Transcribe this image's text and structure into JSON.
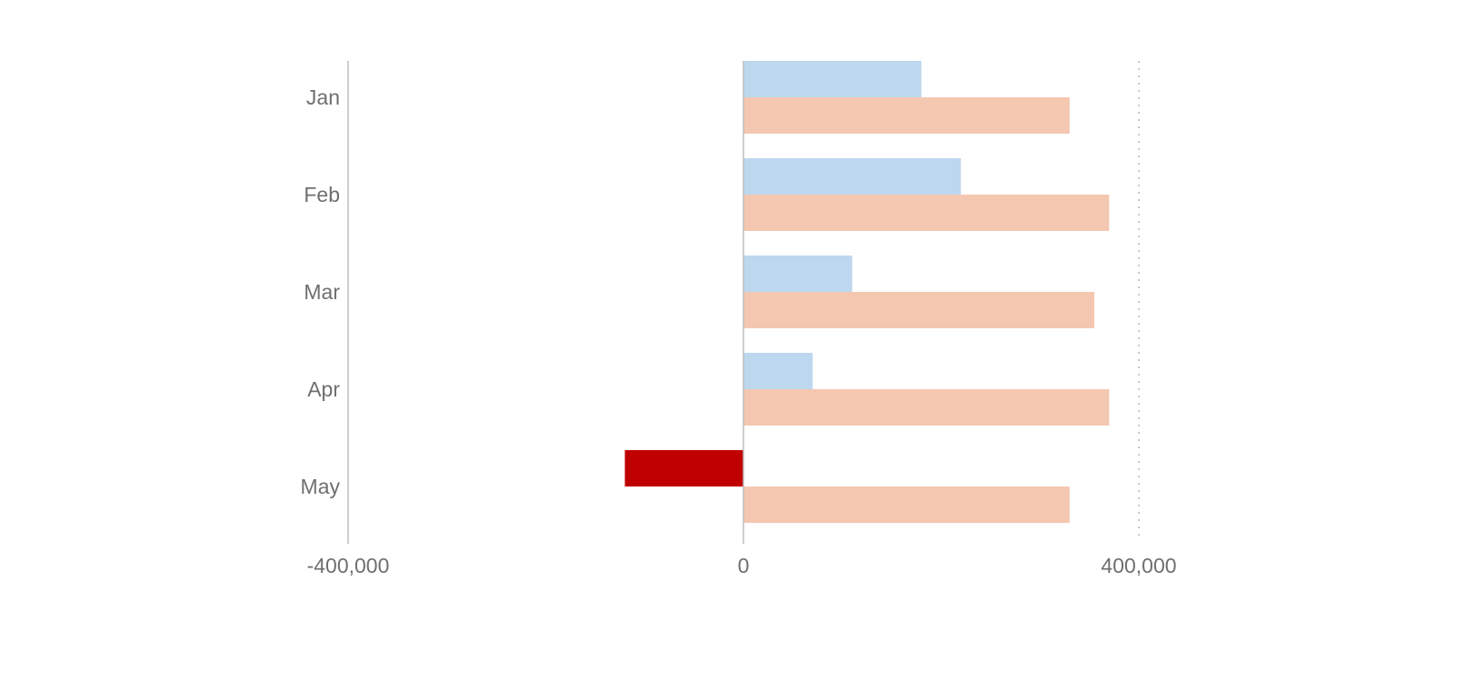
{
  "chart_data": {
    "type": "bar",
    "orientation": "horizontal",
    "categories": [
      "Jan",
      "Feb",
      "Mar",
      "Apr",
      "May"
    ],
    "series": [
      {
        "values": [
          180000,
          220000,
          110000,
          70000,
          -120000
        ],
        "color": "#bdd7ee",
        "negative_color": "#c00000"
      },
      {
        "values": [
          330000,
          370000,
          355000,
          370000,
          330000
        ],
        "color": "#f4c7b0"
      }
    ],
    "xticks": [
      -400000,
      0,
      400000
    ],
    "xtick_labels": [
      "-400,000",
      "0",
      "400,000"
    ],
    "xlim": [
      -400000,
      400000
    ],
    "legend": "none",
    "grid": {
      "x_at": 400000,
      "style": "dotted"
    }
  }
}
